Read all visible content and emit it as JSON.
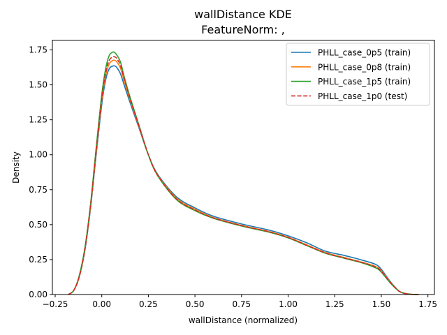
{
  "chart_data": {
    "type": "line",
    "title": "wallDistance KDE",
    "subtitle": "FeatureNorm: ,",
    "xlabel": "wallDistance (normalized)",
    "ylabel": "Density",
    "xlim": [
      -0.265,
      1.785
    ],
    "ylim": [
      0,
      1.82
    ],
    "xticks": [
      -0.25,
      0.0,
      0.25,
      0.5,
      0.75,
      1.0,
      1.25,
      1.5,
      1.75
    ],
    "xtick_labels": [
      "−0.25",
      "0.00",
      "0.25",
      "0.50",
      "0.75",
      "1.00",
      "1.25",
      "1.50",
      "1.75"
    ],
    "yticks": [
      0.0,
      0.25,
      0.5,
      0.75,
      1.0,
      1.25,
      1.5,
      1.75
    ],
    "ytick_labels": [
      "0.00",
      "0.25",
      "0.50",
      "0.75",
      "1.00",
      "1.25",
      "1.50",
      "1.75"
    ],
    "grid": false,
    "legend_position": "top-right",
    "x": [
      -0.18,
      -0.15,
      -0.12,
      -0.09,
      -0.06,
      -0.03,
      0.0,
      0.02,
      0.04,
      0.06,
      0.07,
      0.08,
      0.1,
      0.12,
      0.15,
      0.2,
      0.25,
      0.3,
      0.4,
      0.5,
      0.6,
      0.75,
      0.9,
      1.0,
      1.1,
      1.2,
      1.3,
      1.4,
      1.47,
      1.5,
      1.55,
      1.6,
      1.65,
      1.7
    ],
    "series": [
      {
        "name": "PHLL_case_0p5 (train)",
        "color": "#1f77b4",
        "style": "solid",
        "values": [
          0.0,
          0.03,
          0.13,
          0.32,
          0.62,
          1.0,
          1.36,
          1.53,
          1.615,
          1.635,
          1.635,
          1.625,
          1.58,
          1.5,
          1.38,
          1.19,
          1.0,
          0.86,
          0.7,
          0.62,
          0.56,
          0.505,
          0.46,
          0.42,
          0.37,
          0.31,
          0.28,
          0.245,
          0.215,
          0.18,
          0.09,
          0.02,
          0.003,
          0.0
        ]
      },
      {
        "name": "PHLL_case_0p8 (train)",
        "color": "#ff7f0e",
        "style": "solid",
        "values": [
          0.0,
          0.03,
          0.13,
          0.33,
          0.63,
          1.02,
          1.39,
          1.56,
          1.65,
          1.675,
          1.675,
          1.665,
          1.62,
          1.53,
          1.4,
          1.2,
          1.0,
          0.855,
          0.69,
          0.61,
          0.55,
          0.495,
          0.45,
          0.41,
          0.355,
          0.3,
          0.265,
          0.23,
          0.2,
          0.17,
          0.085,
          0.02,
          0.003,
          0.0
        ]
      },
      {
        "name": "PHLL_case_1p5 (train)",
        "color": "#2ca02c",
        "style": "solid",
        "values": [
          0.0,
          0.03,
          0.14,
          0.34,
          0.65,
          1.05,
          1.43,
          1.61,
          1.71,
          1.735,
          1.73,
          1.715,
          1.665,
          1.56,
          1.42,
          1.21,
          1.0,
          0.85,
          0.68,
          0.6,
          0.545,
          0.49,
          0.445,
          0.405,
          0.35,
          0.295,
          0.26,
          0.225,
          0.19,
          0.16,
          0.08,
          0.02,
          0.003,
          0.0
        ]
      },
      {
        "name": "PHLL_case_1p0 (test)",
        "color": "#d62728",
        "style": "dashed",
        "values": [
          0.0,
          0.03,
          0.13,
          0.33,
          0.64,
          1.03,
          1.4,
          1.58,
          1.675,
          1.7,
          1.7,
          1.69,
          1.64,
          1.545,
          1.41,
          1.205,
          1.0,
          0.852,
          0.685,
          0.605,
          0.548,
          0.493,
          0.448,
          0.408,
          0.352,
          0.298,
          0.262,
          0.228,
          0.197,
          0.166,
          0.083,
          0.02,
          0.003,
          0.0
        ]
      }
    ]
  }
}
